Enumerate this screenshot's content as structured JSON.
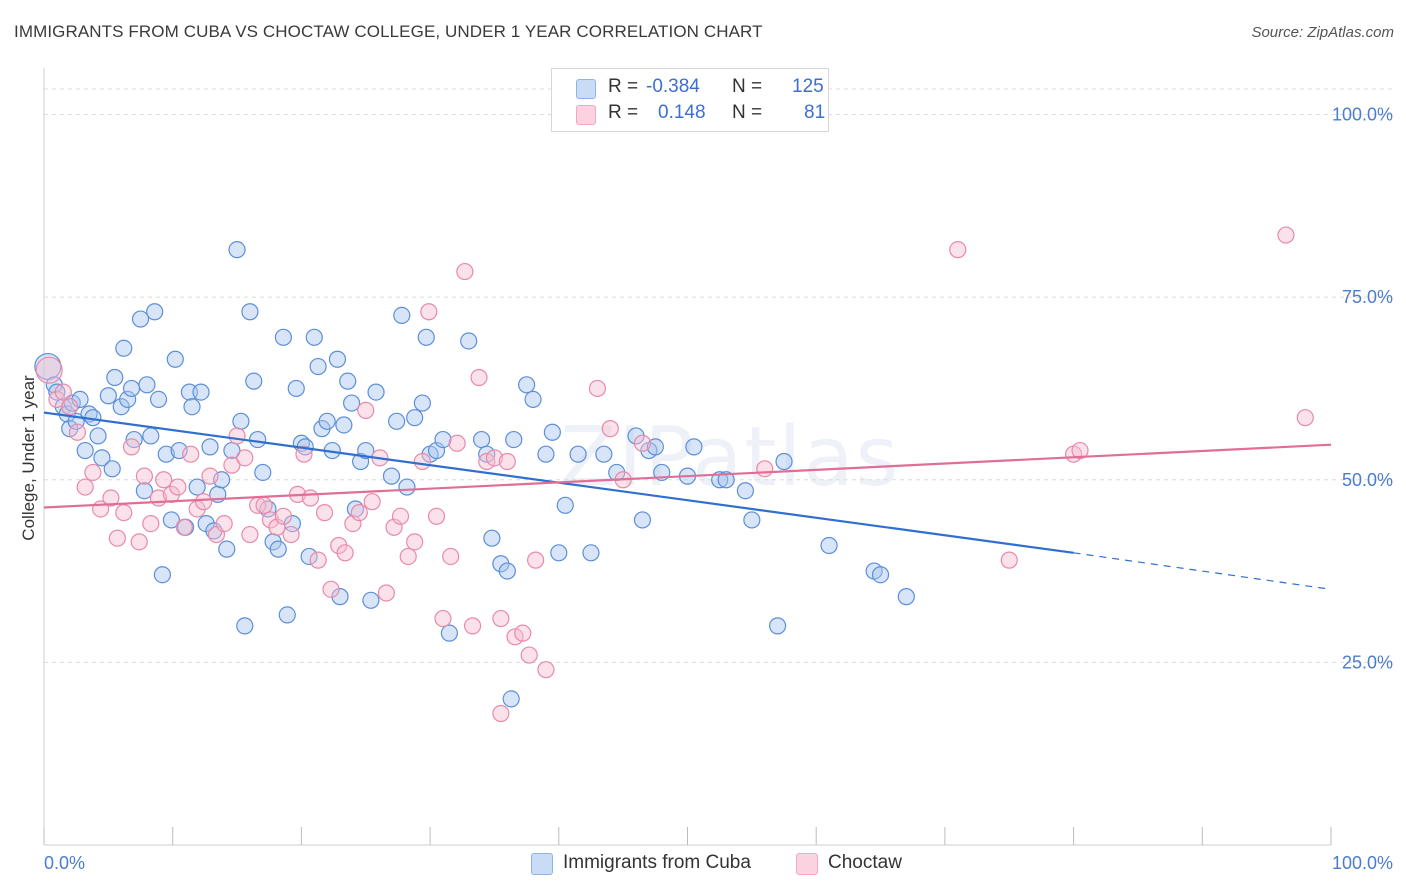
{
  "header": {
    "title": "IMMIGRANTS FROM CUBA VS CHOCTAW COLLEGE, UNDER 1 YEAR CORRELATION CHART",
    "source": "Source: ZipAtlas.com"
  },
  "watermark": "ZIPatlas",
  "legend": {
    "rows": [
      {
        "r_label": "R =",
        "r_value": "-0.384",
        "n_label": "N =",
        "n_value": "125",
        "color": "#8fb4ea"
      },
      {
        "r_label": "R =",
        "r_value": "0.148",
        "n_label": "N =",
        "n_value": "81",
        "color": "#f2a8bf"
      }
    ]
  },
  "bottom_legend": [
    {
      "label": "Immigrants from Cuba",
      "color": "#a9c6f0"
    },
    {
      "label": "Choctaw",
      "color": "#f6bdd0"
    }
  ],
  "chart_data": {
    "type": "scatter",
    "title": "IMMIGRANTS FROM CUBA VS CHOCTAW COLLEGE, UNDER 1 YEAR CORRELATION CHART",
    "xlabel": "",
    "ylabel": "College, Under 1 year",
    "xlim": [
      0,
      100
    ],
    "ylim": [
      0,
      105
    ],
    "x_tick_labels": [
      "0.0%",
      "100.0%"
    ],
    "y_ticks": [
      25,
      50,
      75,
      100
    ],
    "y_tick_labels": [
      "25.0%",
      "50.0%",
      "75.0%",
      "100.0%"
    ],
    "grid": true,
    "legend_position": "top-center",
    "series": [
      {
        "name": "Immigrants from Cuba",
        "color": "#5b8fd9",
        "fill": "#a9c6f0",
        "trend": {
          "x0": 0,
          "y0": 59.2,
          "x1": 80,
          "y1": 40.0,
          "dashed_to": 100,
          "dashed_y": 35.0,
          "color": "#2f6fd0"
        },
        "points": [
          [
            0.3,
            65.5
          ],
          [
            0.8,
            63
          ],
          [
            1,
            62
          ],
          [
            1.5,
            60
          ],
          [
            1.8,
            59
          ],
          [
            2,
            57
          ],
          [
            2.2,
            60.5
          ],
          [
            2.5,
            58
          ],
          [
            2.8,
            61
          ],
          [
            3.2,
            54
          ],
          [
            3.5,
            59
          ],
          [
            3.8,
            58.5
          ],
          [
            4.2,
            56
          ],
          [
            4.5,
            53
          ],
          [
            5,
            61.5
          ],
          [
            5.3,
            51.5
          ],
          [
            5.5,
            64
          ],
          [
            6,
            60
          ],
          [
            6.2,
            68
          ],
          [
            6.5,
            61
          ],
          [
            6.8,
            62.5
          ],
          [
            7,
            55.5
          ],
          [
            7.5,
            72
          ],
          [
            7.8,
            48.5
          ],
          [
            8,
            63
          ],
          [
            8.3,
            56
          ],
          [
            8.6,
            73
          ],
          [
            8.9,
            61
          ],
          [
            9.2,
            37
          ],
          [
            9.5,
            53.5
          ],
          [
            9.9,
            44.5
          ],
          [
            10.2,
            66.5
          ],
          [
            10.5,
            54
          ],
          [
            11,
            43.5
          ],
          [
            11.3,
            62
          ],
          [
            11.5,
            60
          ],
          [
            11.9,
            49
          ],
          [
            12.2,
            62
          ],
          [
            12.6,
            44
          ],
          [
            12.9,
            54.5
          ],
          [
            13.2,
            43
          ],
          [
            13.5,
            48
          ],
          [
            13.8,
            50
          ],
          [
            14.2,
            40.5
          ],
          [
            14.6,
            54
          ],
          [
            15,
            81.5
          ],
          [
            15.3,
            58
          ],
          [
            15.6,
            30
          ],
          [
            16,
            73
          ],
          [
            16.3,
            63.5
          ],
          [
            16.6,
            55.5
          ],
          [
            17,
            51
          ],
          [
            17.4,
            46
          ],
          [
            17.8,
            41.5
          ],
          [
            18.2,
            40.5
          ],
          [
            18.6,
            69.5
          ],
          [
            18.9,
            31.5
          ],
          [
            19.3,
            44
          ],
          [
            19.6,
            62.5
          ],
          [
            20,
            55
          ],
          [
            20.3,
            54.5
          ],
          [
            20.6,
            39.5
          ],
          [
            21,
            69.5
          ],
          [
            21.3,
            65.5
          ],
          [
            21.6,
            57
          ],
          [
            22,
            58
          ],
          [
            22.4,
            54
          ],
          [
            22.8,
            66.5
          ],
          [
            23,
            34
          ],
          [
            23.3,
            57.5
          ],
          [
            23.6,
            63.5
          ],
          [
            23.9,
            60.5
          ],
          [
            24.2,
            46
          ],
          [
            24.6,
            52.5
          ],
          [
            25,
            54
          ],
          [
            25.4,
            33.5
          ],
          [
            25.8,
            62
          ],
          [
            27,
            50.5
          ],
          [
            27.4,
            58
          ],
          [
            27.8,
            72.5
          ],
          [
            28.2,
            49
          ],
          [
            28.8,
            58.5
          ],
          [
            29.4,
            60.5
          ],
          [
            29.7,
            69.5
          ],
          [
            30,
            53.5
          ],
          [
            30.5,
            54
          ],
          [
            31,
            55.5
          ],
          [
            31.5,
            29
          ],
          [
            33,
            69
          ],
          [
            34,
            55.5
          ],
          [
            34.4,
            53.5
          ],
          [
            34.8,
            42
          ],
          [
            35.5,
            38.5
          ],
          [
            36,
            37.5
          ],
          [
            36.5,
            55.5
          ],
          [
            37.5,
            63
          ],
          [
            38,
            61
          ],
          [
            39,
            53.5
          ],
          [
            39.5,
            56.5
          ],
          [
            40,
            40
          ],
          [
            40.5,
            46.5
          ],
          [
            41.5,
            53.5
          ],
          [
            42.5,
            40
          ],
          [
            43.5,
            53.5
          ],
          [
            44.5,
            51
          ],
          [
            46,
            56
          ],
          [
            46.5,
            44.5
          ],
          [
            47,
            54
          ],
          [
            47.5,
            54.5
          ],
          [
            48,
            51
          ],
          [
            50,
            50.5
          ],
          [
            50.5,
            54.5
          ],
          [
            52.5,
            50
          ],
          [
            53,
            50
          ],
          [
            54.5,
            48.5
          ],
          [
            55,
            44.5
          ],
          [
            57,
            30
          ],
          [
            57.5,
            52.5
          ],
          [
            61,
            41
          ],
          [
            64.5,
            37.5
          ],
          [
            65,
            37
          ],
          [
            67,
            34
          ],
          [
            36.3,
            20
          ]
        ]
      },
      {
        "name": "Choctaw",
        "color": "#e88aa9",
        "fill": "#f6bdd0",
        "trend": {
          "x0": 0,
          "y0": 46.2,
          "x1": 100,
          "y1": 54.8,
          "color": "#e06e97"
        },
        "points": [
          [
            0.4,
            65
          ],
          [
            1,
            61
          ],
          [
            1.5,
            62
          ],
          [
            2,
            60
          ],
          [
            2.6,
            56.5
          ],
          [
            3.2,
            49
          ],
          [
            3.8,
            51
          ],
          [
            4.4,
            46
          ],
          [
            5.2,
            47.5
          ],
          [
            5.7,
            42
          ],
          [
            6.2,
            45.5
          ],
          [
            6.8,
            54.5
          ],
          [
            7.4,
            41.5
          ],
          [
            7.8,
            50.5
          ],
          [
            8.3,
            44
          ],
          [
            8.9,
            47.5
          ],
          [
            9.3,
            50
          ],
          [
            9.9,
            48
          ],
          [
            10.4,
            49
          ],
          [
            10.9,
            43.5
          ],
          [
            11.4,
            53.5
          ],
          [
            11.9,
            46
          ],
          [
            12.4,
            47
          ],
          [
            12.9,
            50.5
          ],
          [
            13.4,
            42.5
          ],
          [
            14,
            44
          ],
          [
            14.6,
            52
          ],
          [
            15,
            56
          ],
          [
            15.6,
            53
          ],
          [
            16,
            42.5
          ],
          [
            16.6,
            46.5
          ],
          [
            17.1,
            46.5
          ],
          [
            17.6,
            44.5
          ],
          [
            18.1,
            43.5
          ],
          [
            18.6,
            45
          ],
          [
            19.2,
            42.5
          ],
          [
            19.7,
            48
          ],
          [
            20.2,
            53.5
          ],
          [
            20.7,
            47.5
          ],
          [
            21.3,
            39
          ],
          [
            21.8,
            45.5
          ],
          [
            22.3,
            35
          ],
          [
            22.9,
            41
          ],
          [
            23.4,
            40
          ],
          [
            24,
            44
          ],
          [
            24.5,
            45.5
          ],
          [
            25,
            59.5
          ],
          [
            25.5,
            47
          ],
          [
            26.1,
            53
          ],
          [
            26.6,
            34.5
          ],
          [
            27.2,
            43.5
          ],
          [
            27.7,
            45
          ],
          [
            28.3,
            39.5
          ],
          [
            28.8,
            41.5
          ],
          [
            29.4,
            52.5
          ],
          [
            29.9,
            73
          ],
          [
            30.5,
            45
          ],
          [
            31,
            31
          ],
          [
            31.6,
            39.5
          ],
          [
            32.1,
            55
          ],
          [
            32.7,
            78.5
          ],
          [
            33.3,
            30
          ],
          [
            33.8,
            64
          ],
          [
            34.4,
            52.5
          ],
          [
            35,
            53
          ],
          [
            35.5,
            31
          ],
          [
            36,
            52.5
          ],
          [
            36.6,
            28.5
          ],
          [
            37.2,
            29
          ],
          [
            37.7,
            26
          ],
          [
            38.2,
            39
          ],
          [
            39,
            24
          ],
          [
            43,
            62.5
          ],
          [
            44,
            57
          ],
          [
            45,
            50
          ],
          [
            46.5,
            55
          ],
          [
            56,
            51.5
          ],
          [
            71,
            81.5
          ],
          [
            75,
            39
          ],
          [
            80,
            53.5
          ],
          [
            80.5,
            54
          ],
          [
            96.5,
            83.5
          ],
          [
            98,
            58.5
          ],
          [
            35.5,
            18
          ]
        ]
      }
    ]
  }
}
